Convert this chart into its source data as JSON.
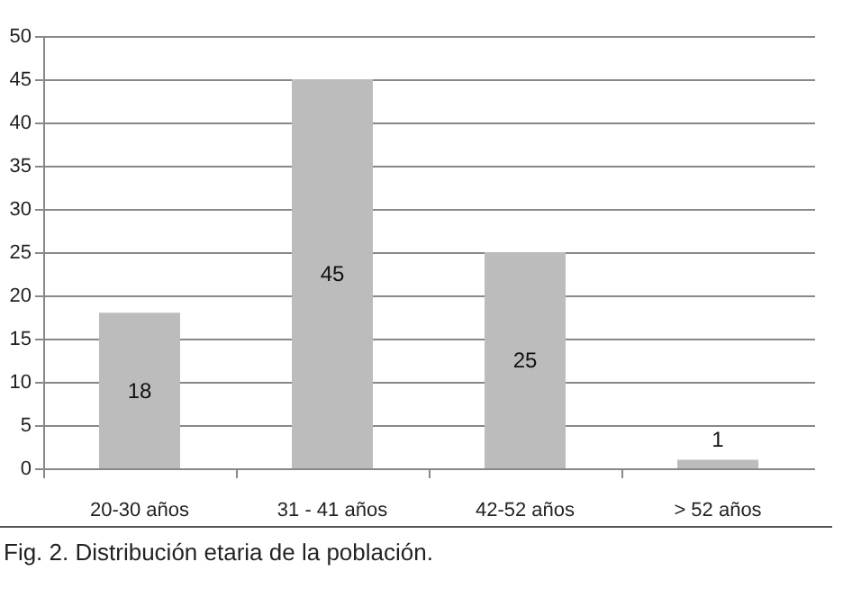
{
  "chart_data": {
    "type": "bar",
    "categories": [
      "20-30 años",
      "31 - 41 años",
      "42-52 años",
      "> 52 años"
    ],
    "values": [
      18,
      45,
      25,
      1
    ],
    "color": "#bcbcbc",
    "ylim": [
      0,
      50
    ],
    "yticks": [
      0,
      5,
      10,
      15,
      20,
      25,
      30,
      35,
      40,
      45,
      50
    ],
    "grid": "y",
    "data_labels": true,
    "annotations": [
      "Fig. 2. Distribución etaria de la población."
    ]
  }
}
